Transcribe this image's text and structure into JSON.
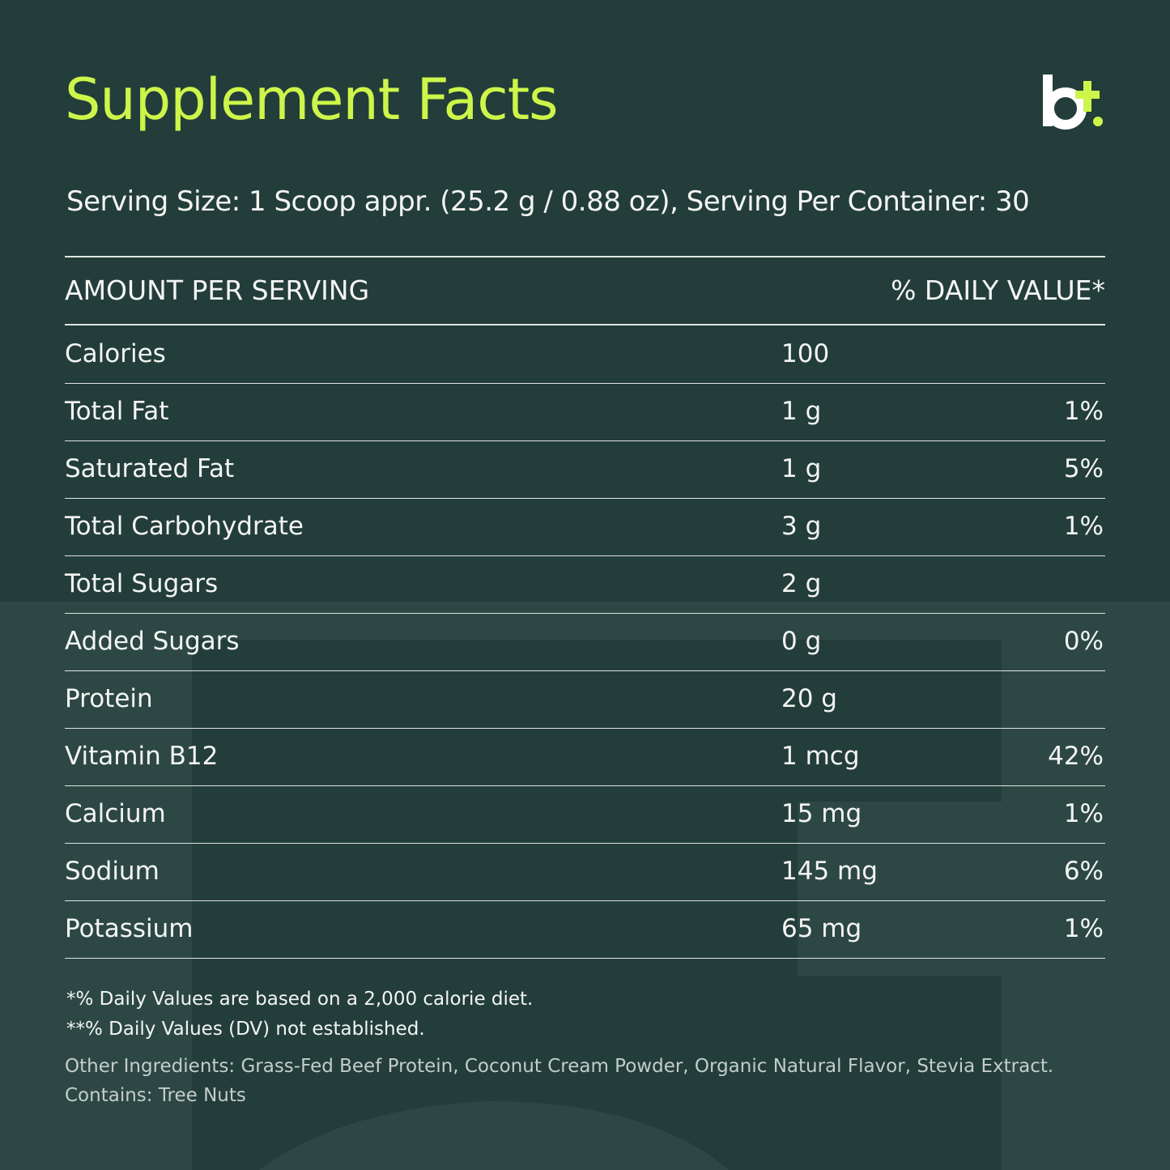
{
  "header": {
    "title": "Supplement Facts",
    "serving": "Serving Size: 1 Scoop appr. (25.2 g / 0.88 oz), Serving Per Container: 30"
  },
  "table": {
    "columns": [
      "AMOUNT PER SERVING",
      "% DAILY VALUE*"
    ],
    "rows": [
      {
        "name": "Calories",
        "amount": "100"
      },
      {
        "name": "Total Fat",
        "amount": "1 g",
        "daily_value": "1%"
      },
      {
        "name": "Saturated Fat",
        "amount": "1 g",
        "daily_value": "5%"
      },
      {
        "name": "Total Carbohydrate",
        "amount": "3 g",
        "daily_value": "1%"
      },
      {
        "name": "Total Sugars",
        "amount": "2 g"
      },
      {
        "name": "Added Sugars",
        "amount": "0 g",
        "daily_value": "0%"
      },
      {
        "name": "Protein",
        "amount": "20 g"
      },
      {
        "name": "Vitamin B12",
        "amount": "1 mcg",
        "daily_value": "42%"
      },
      {
        "name": "Calcium",
        "amount": "15 mg",
        "daily_value": "1%"
      },
      {
        "name": "Sodium",
        "amount": "145 mg",
        "daily_value": "6%"
      },
      {
        "name": "Potassium",
        "amount": "65 mg",
        "daily_value": "1%"
      }
    ]
  },
  "footnotes": [
    "*% Daily Values are based on a 2,000 calorie diet.",
    "**% Daily Values (DV) not established."
  ],
  "ingredients": [
    "Other Ingredients: Grass-Fed Beef Protein, Coconut Cream Powder, Organic Natural Flavor, Stevia Extract.",
    "Contains: Tree Nuts"
  ]
}
